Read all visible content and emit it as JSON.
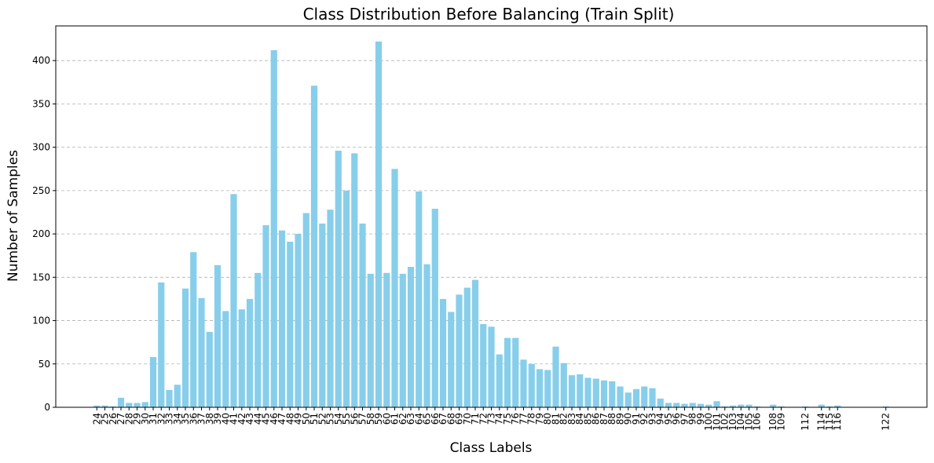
{
  "chart_data": {
    "type": "bar",
    "title": "Class Distribution Before Balancing (Train Split)",
    "xlabel": "Class Labels",
    "ylabel": "Number of Samples",
    "ylim": [
      0,
      440
    ],
    "yticks": [
      0,
      50,
      100,
      150,
      200,
      250,
      300,
      350,
      400
    ],
    "grid": "y-dashed",
    "bar_color": "#87ceeb",
    "categories": [
      24,
      25,
      26,
      27,
      28,
      29,
      30,
      31,
      32,
      33,
      34,
      35,
      36,
      37,
      38,
      39,
      40,
      41,
      42,
      43,
      44,
      45,
      46,
      47,
      48,
      49,
      50,
      51,
      52,
      53,
      54,
      55,
      56,
      57,
      58,
      59,
      60,
      61,
      62,
      63,
      64,
      65,
      66,
      67,
      68,
      69,
      70,
      71,
      72,
      73,
      74,
      75,
      76,
      77,
      78,
      79,
      80,
      81,
      82,
      83,
      84,
      85,
      86,
      87,
      88,
      89,
      90,
      91,
      92,
      93,
      94,
      95,
      96,
      97,
      98,
      99,
      100,
      101,
      102,
      103,
      104,
      105,
      106,
      108,
      109,
      112,
      114,
      115,
      116,
      122
    ],
    "values": [
      2,
      2,
      1,
      11,
      5,
      5,
      6,
      58,
      144,
      20,
      26,
      137,
      179,
      126,
      87,
      164,
      111,
      246,
      113,
      125,
      155,
      210,
      412,
      204,
      191,
      200,
      224,
      371,
      212,
      228,
      296,
      250,
      293,
      212,
      154,
      422,
      155,
      275,
      154,
      162,
      249,
      165,
      229,
      125,
      110,
      130,
      138,
      147,
      96,
      93,
      61,
      80,
      80,
      55,
      50,
      44,
      43,
      70,
      51,
      37,
      38,
      34,
      33,
      31,
      30,
      24,
      17,
      21,
      24,
      22,
      10,
      5,
      5,
      4,
      5,
      4,
      3,
      7,
      1,
      2,
      3,
      3,
      1,
      3,
      1,
      1,
      3,
      1,
      2,
      1
    ]
  }
}
